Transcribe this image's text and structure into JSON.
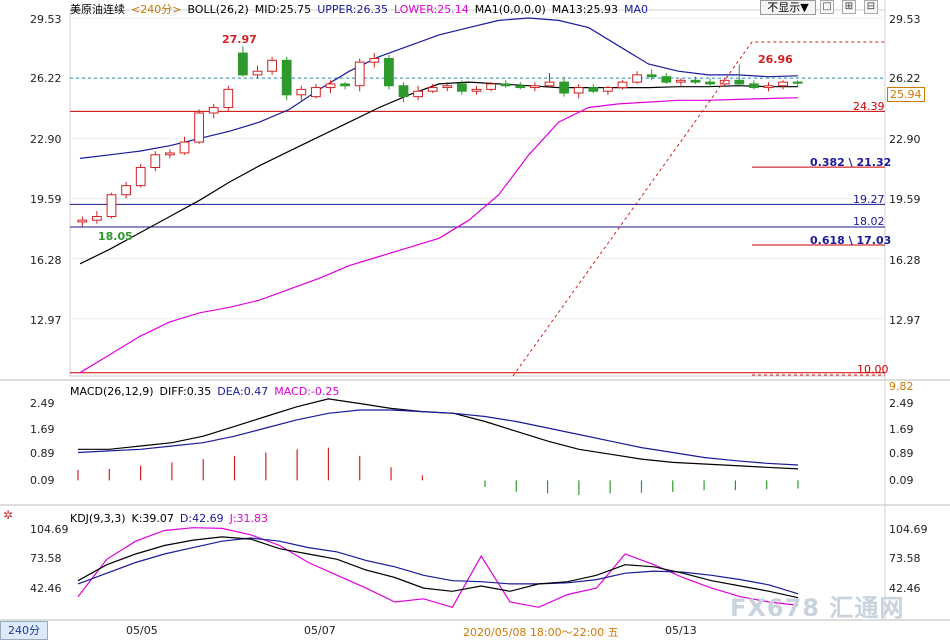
{
  "header": {
    "symbol": "美原油连续",
    "period": "<240分>",
    "boll": "BOLL(26,2)",
    "mid": "MID:25.75",
    "upper": "UPPER:26.35",
    "lower": "LOWER:25.14",
    "ma1": "MA1(0,0,0,0)",
    "ma13": "MA13:25.93",
    "ma0": "MA0",
    "hide_button": "不显示▼"
  },
  "window_buttons": [
    "□",
    "⊞",
    "⊟"
  ],
  "price_axis_labels": [
    "29.53",
    "26.22",
    "22.90",
    "19.59",
    "16.28",
    "12.97"
  ],
  "price_marker": "25.94",
  "annotations": {
    "high": "27.97",
    "low": "18.05",
    "recent_high": "26.96",
    "line_2439": "24.39",
    "fib_0382": "0.382 \\ 21.32",
    "line_1927": "19.27",
    "line_1802": "18.02",
    "fib_0618": "0.618 \\ 17.03",
    "line_1000": "10.00",
    "below_1000": "9.82"
  },
  "macd": {
    "title": "MACD(26,12,9)",
    "diff": "DIFF:0.35",
    "dea": "DEA:0.47",
    "macd": "MACD:-0.25",
    "axis_labels": [
      "2.49",
      "1.69",
      "0.89",
      "0.09"
    ]
  },
  "kdj": {
    "title": "KDJ(9,3,3)",
    "k": "K:39.07",
    "d": "D:42.69",
    "j": "J:31.83",
    "axis_labels": [
      "104.69",
      "73.58",
      "42.46"
    ]
  },
  "xaxis": {
    "timeframe": "240分",
    "dates": [
      "05/05",
      "05/07",
      "05/13"
    ],
    "cursor_time": "2020/05/08 18:00～22:00 五"
  },
  "watermark": "FX678 汇通网",
  "colors": {
    "up": "#d42020",
    "down": "#2e9a2e",
    "mid": "#000000",
    "upper": "#1a1a99",
    "lower": "#dd00dd",
    "level": "#cc0000",
    "hline": "#1a1a99"
  },
  "chart_data": {
    "type": "candlestick",
    "instrument": "美原油连续",
    "period": "240分",
    "ylim": [
      9.82,
      29.53
    ],
    "candles": [
      {
        "o": 18.3,
        "h": 18.6,
        "l": 18.05,
        "c": 18.4
      },
      {
        "o": 18.4,
        "h": 18.9,
        "l": 18.2,
        "c": 18.6
      },
      {
        "o": 18.6,
        "h": 19.9,
        "l": 18.5,
        "c": 19.8
      },
      {
        "o": 19.8,
        "h": 20.5,
        "l": 19.6,
        "c": 20.3
      },
      {
        "o": 20.3,
        "h": 21.5,
        "l": 20.2,
        "c": 21.3
      },
      {
        "o": 21.3,
        "h": 22.2,
        "l": 21.1,
        "c": 22.0
      },
      {
        "o": 22.0,
        "h": 22.3,
        "l": 21.8,
        "c": 22.1
      },
      {
        "o": 22.1,
        "h": 23.0,
        "l": 22.0,
        "c": 22.7
      },
      {
        "o": 22.7,
        "h": 24.5,
        "l": 22.6,
        "c": 24.3
      },
      {
        "o": 24.3,
        "h": 24.8,
        "l": 24.0,
        "c": 24.6
      },
      {
        "o": 24.6,
        "h": 25.8,
        "l": 24.4,
        "c": 25.6
      },
      {
        "o": 27.6,
        "h": 27.97,
        "l": 26.3,
        "c": 26.4
      },
      {
        "o": 26.4,
        "h": 26.9,
        "l": 26.2,
        "c": 26.6
      },
      {
        "o": 26.6,
        "h": 27.4,
        "l": 26.4,
        "c": 27.2
      },
      {
        "o": 27.2,
        "h": 27.4,
        "l": 25.0,
        "c": 25.3
      },
      {
        "o": 25.3,
        "h": 25.8,
        "l": 25.0,
        "c": 25.6
      },
      {
        "o": 25.2,
        "h": 25.9,
        "l": 25.1,
        "c": 25.7
      },
      {
        "o": 25.7,
        "h": 26.1,
        "l": 25.4,
        "c": 25.9
      },
      {
        "o": 25.9,
        "h": 26.0,
        "l": 25.6,
        "c": 25.8
      },
      {
        "o": 25.8,
        "h": 27.3,
        "l": 25.5,
        "c": 27.1
      },
      {
        "o": 27.1,
        "h": 27.6,
        "l": 26.8,
        "c": 27.3
      },
      {
        "o": 27.3,
        "h": 27.5,
        "l": 25.6,
        "c": 25.8
      },
      {
        "o": 25.8,
        "h": 26.0,
        "l": 24.9,
        "c": 25.2
      },
      {
        "o": 25.2,
        "h": 25.8,
        "l": 25.0,
        "c": 25.5
      },
      {
        "o": 25.5,
        "h": 25.9,
        "l": 25.4,
        "c": 25.7
      },
      {
        "o": 25.7,
        "h": 26.0,
        "l": 25.5,
        "c": 25.8
      },
      {
        "o": 25.9,
        "h": 26.1,
        "l": 25.3,
        "c": 25.5
      },
      {
        "o": 25.5,
        "h": 25.8,
        "l": 25.3,
        "c": 25.6
      },
      {
        "o": 25.6,
        "h": 26.0,
        "l": 25.5,
        "c": 25.9
      },
      {
        "o": 25.9,
        "h": 26.1,
        "l": 25.7,
        "c": 25.8
      },
      {
        "o": 25.8,
        "h": 26.0,
        "l": 25.6,
        "c": 25.7
      },
      {
        "o": 25.7,
        "h": 26.0,
        "l": 25.5,
        "c": 25.8
      },
      {
        "o": 25.8,
        "h": 26.5,
        "l": 25.7,
        "c": 26.0
      },
      {
        "o": 26.0,
        "h": 26.3,
        "l": 25.2,
        "c": 25.4
      },
      {
        "o": 25.4,
        "h": 25.9,
        "l": 25.1,
        "c": 25.7
      },
      {
        "o": 25.7,
        "h": 25.9,
        "l": 25.4,
        "c": 25.5
      },
      {
        "o": 25.5,
        "h": 25.8,
        "l": 25.3,
        "c": 25.7
      },
      {
        "o": 25.7,
        "h": 26.1,
        "l": 25.6,
        "c": 26.0
      },
      {
        "o": 26.0,
        "h": 26.6,
        "l": 25.9,
        "c": 26.4
      },
      {
        "o": 26.4,
        "h": 26.7,
        "l": 26.1,
        "c": 26.3
      },
      {
        "o": 26.3,
        "h": 26.5,
        "l": 25.9,
        "c": 26.0
      },
      {
        "o": 26.0,
        "h": 26.2,
        "l": 25.8,
        "c": 26.1
      },
      {
        "o": 26.1,
        "h": 26.3,
        "l": 25.9,
        "c": 26.0
      },
      {
        "o": 26.0,
        "h": 26.2,
        "l": 25.7,
        "c": 25.9
      },
      {
        "o": 25.9,
        "h": 26.2,
        "l": 25.8,
        "c": 26.1
      },
      {
        "o": 26.1,
        "h": 26.96,
        "l": 25.8,
        "c": 25.9
      },
      {
        "o": 25.9,
        "h": 26.1,
        "l": 25.6,
        "c": 25.7
      },
      {
        "o": 25.7,
        "h": 26.0,
        "l": 25.5,
        "c": 25.8
      },
      {
        "o": 25.8,
        "h": 26.1,
        "l": 25.6,
        "c": 26.0
      },
      {
        "o": 26.0,
        "h": 26.1,
        "l": 25.7,
        "c": 25.94
      }
    ],
    "bollinger": {
      "upper": [
        21.8,
        22.0,
        22.2,
        22.5,
        22.9,
        23.3,
        23.8,
        24.5,
        25.6,
        26.6,
        27.4,
        28.0,
        28.6,
        29.0,
        29.4,
        29.53,
        29.4,
        29.0,
        28.0,
        27.0,
        26.6,
        26.4,
        26.4,
        26.3,
        26.35
      ],
      "mid": [
        16.0,
        16.8,
        17.7,
        18.6,
        19.5,
        20.5,
        21.4,
        22.2,
        23.0,
        23.8,
        24.6,
        25.3,
        25.9,
        26.0,
        25.9,
        25.8,
        25.7,
        25.7,
        25.7,
        25.7,
        25.75,
        25.75,
        25.8,
        25.75,
        25.75
      ],
      "lower": [
        10.0,
        11.0,
        12.0,
        12.8,
        13.3,
        13.6,
        14.0,
        14.6,
        15.2,
        15.9,
        16.4,
        16.9,
        17.4,
        18.4,
        19.8,
        22.0,
        23.8,
        24.6,
        24.8,
        24.9,
        25.0,
        25.0,
        25.05,
        25.1,
        25.14
      ]
    },
    "levels": [
      24.39,
      21.32,
      19.27,
      18.02,
      17.03,
      10.0
    ],
    "fib_retracements": [
      {
        "ratio": "0.382",
        "price": 21.32
      },
      {
        "ratio": "0.618",
        "price": 17.03
      }
    ],
    "macd": {
      "ylim": [
        -0.6,
        2.7
      ],
      "diff": [
        0.95,
        0.95,
        1.05,
        1.15,
        1.35,
        1.65,
        1.95,
        2.25,
        2.49,
        2.35,
        2.2,
        2.1,
        2.05,
        1.8,
        1.5,
        1.2,
        0.95,
        0.8,
        0.65,
        0.55,
        0.5,
        0.45,
        0.4,
        0.35
      ],
      "dea": [
        0.85,
        0.9,
        0.95,
        1.05,
        1.15,
        1.35,
        1.6,
        1.85,
        2.05,
        2.15,
        2.15,
        2.1,
        2.05,
        1.95,
        1.8,
        1.6,
        1.4,
        1.2,
        1.0,
        0.85,
        0.7,
        0.6,
        0.52,
        0.47
      ],
      "hist": [
        0.32,
        0.35,
        0.45,
        0.55,
        0.65,
        0.75,
        0.85,
        0.95,
        1.0,
        0.75,
        0.4,
        0.15,
        0.0,
        -0.2,
        -0.35,
        -0.4,
        -0.45,
        -0.4,
        -0.38,
        -0.35,
        -0.3,
        -0.3,
        -0.27,
        -0.25
      ]
    },
    "kdj": {
      "ylim": [
        20,
        110
      ],
      "k": [
        55,
        70,
        80,
        88,
        93,
        96,
        94,
        85,
        80,
        75,
        65,
        58,
        48,
        45,
        50,
        45,
        52,
        54,
        60,
        70,
        68,
        62,
        55,
        50,
        45,
        39.07
      ],
      "d": [
        52,
        62,
        72,
        80,
        86,
        92,
        95,
        92,
        86,
        82,
        74,
        68,
        60,
        55,
        54,
        52,
        52,
        53,
        56,
        62,
        64,
        63,
        60,
        56,
        51,
        42.69
      ],
      "j": [
        40,
        75,
        92,
        102,
        104.69,
        104,
        98,
        88,
        72,
        60,
        48,
        35,
        38,
        30,
        78,
        35,
        30,
        42,
        48,
        80,
        70,
        58,
        48,
        40,
        35,
        31.83
      ]
    }
  }
}
